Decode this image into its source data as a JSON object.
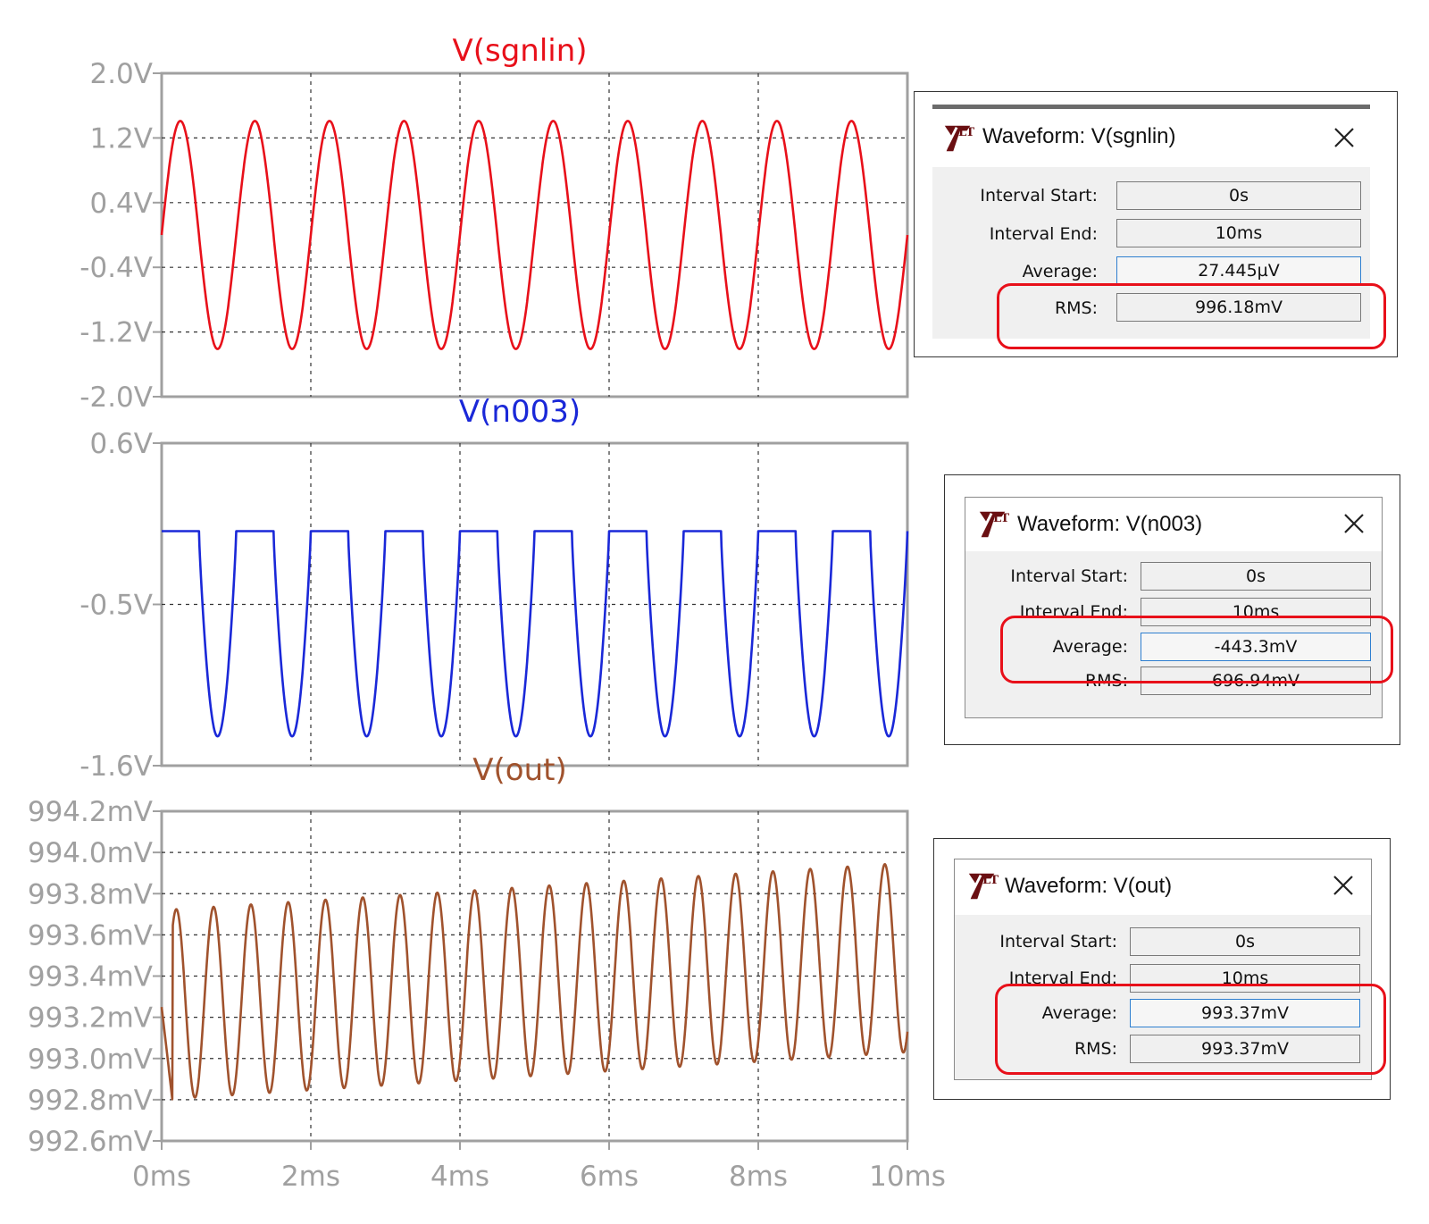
{
  "x_axis": {
    "ticks": [
      "0ms",
      "2ms",
      "4ms",
      "6ms",
      "8ms",
      "10ms"
    ]
  },
  "colors": {
    "sgnlin": "#e8101a",
    "n003": "#1a28d8",
    "out": "#a0522d",
    "grid": "#333333",
    "frame": "#a0a0a0",
    "highlight": "#e8101a"
  },
  "chart_data": [
    {
      "type": "line",
      "title": "V(sgnlin)",
      "x": [
        0,
        10
      ],
      "xlim": [
        0,
        10
      ],
      "ylim": [
        -2.0,
        2.0
      ],
      "y_ticks": [
        "2.0V",
        "1.2V",
        "0.4V",
        "-0.4V",
        "-1.2V",
        "-2.0V"
      ],
      "y_tick_values": [
        2.0,
        1.2,
        0.4,
        -0.4,
        -1.2,
        -2.0
      ],
      "waveform": "sine",
      "frequency_khz": 1,
      "amplitude": 1.41,
      "offset": 0,
      "grid": true
    },
    {
      "type": "line",
      "title": "V(n003)",
      "x": [
        0,
        10
      ],
      "xlim": [
        0,
        10
      ],
      "ylim": [
        -1.6,
        0.6
      ],
      "y_ticks": [
        "0.6V",
        "-0.5V",
        "-1.6V"
      ],
      "y_tick_values": [
        0.6,
        -0.5,
        -1.6
      ],
      "waveform": "clipped sine",
      "frequency_khz": 1,
      "high_level": 0.0,
      "low_level": -1.4,
      "grid": true
    },
    {
      "type": "line",
      "title": "V(out)",
      "x": [
        0,
        10
      ],
      "xlim": [
        0,
        10
      ],
      "ylim": [
        992.6,
        994.2
      ],
      "y_ticks": [
        "994.2mV",
        "994.0mV",
        "993.8mV",
        "993.6mV",
        "993.4mV",
        "993.2mV",
        "993.0mV",
        "992.8mV",
        "992.6mV"
      ],
      "y_tick_values": [
        994.2,
        994.0,
        993.8,
        993.6,
        993.4,
        993.2,
        993.0,
        992.8,
        992.6
      ],
      "waveform": "sine with rising mean",
      "frequency_khz": 2,
      "peak_start": 993.72,
      "peak_end": 993.95,
      "trough_start": 992.8,
      "trough_end": 993.03,
      "grid": true
    }
  ],
  "dialogs": [
    {
      "title": "Waveform: V(sgnlin)",
      "interval_start_label": "Interval Start:",
      "interval_start": "0s",
      "interval_end_label": "Interval End:",
      "interval_end": "10ms",
      "average_label": "Average:",
      "average": "27.445µV",
      "rms_label": "RMS:",
      "rms": "996.18mV"
    },
    {
      "title": "Waveform: V(n003)",
      "interval_start_label": "Interval Start:",
      "interval_start": "0s",
      "interval_end_label": "Interval End:",
      "interval_end": "10ms",
      "average_label": "Average:",
      "average": "-443.3mV",
      "rms_label": "RMS:",
      "rms": "696.94mV"
    },
    {
      "title": "Waveform: V(out)",
      "interval_start_label": "Interval Start:",
      "interval_start": "0s",
      "interval_end_label": "Interval End:",
      "interval_end": "10ms",
      "average_label": "Average:",
      "average": "993.37mV",
      "rms_label": "RMS:",
      "rms": "993.37mV"
    }
  ]
}
